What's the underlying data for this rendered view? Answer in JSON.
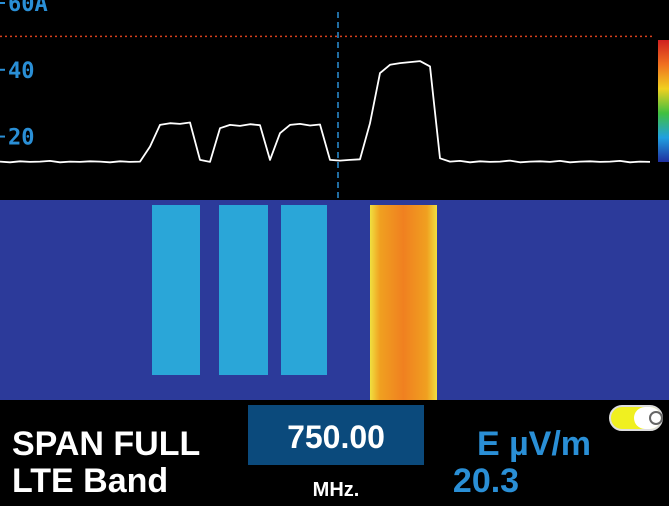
{
  "chart_data": {
    "type": "line",
    "ylim": [
      1,
      60
    ],
    "yticks": [
      20,
      40,
      {
        "value": 60,
        "label": "60A"
      }
    ],
    "values": [
      12.5,
      12.3,
      12.6,
      12.4,
      12.5,
      12.7,
      12.3,
      12.5,
      12.4,
      12.6,
      12.5,
      12.3,
      12.6,
      12.4,
      12.5,
      17,
      23.5,
      24,
      23.8,
      24.2,
      13,
      12.4,
      22.5,
      23.5,
      23.2,
      23.7,
      23.4,
      13,
      21,
      23.5,
      23.8,
      23.3,
      23.6,
      13,
      12.8,
      13,
      13.2,
      24,
      39,
      41.5,
      42,
      42.3,
      42.6,
      41,
      13.5,
      12.5,
      12.7,
      12.3,
      12.6,
      12.4,
      12.5,
      12.8,
      12.3,
      12.5,
      12.6,
      12.4,
      12.7,
      12.3,
      12.5,
      12.6,
      12.4,
      12.5,
      12.7,
      12.3,
      12.5,
      12.4
    ],
    "color": "#ffffff",
    "ref_level": 50,
    "ref_color": "#d8401e"
  },
  "panel": {
    "span": "SPAN FULL",
    "band": "LTE Band",
    "frequency": "750.00",
    "frequency_unit": "MHz.",
    "measure_unit": "E µV/m",
    "reading": "20.3"
  }
}
